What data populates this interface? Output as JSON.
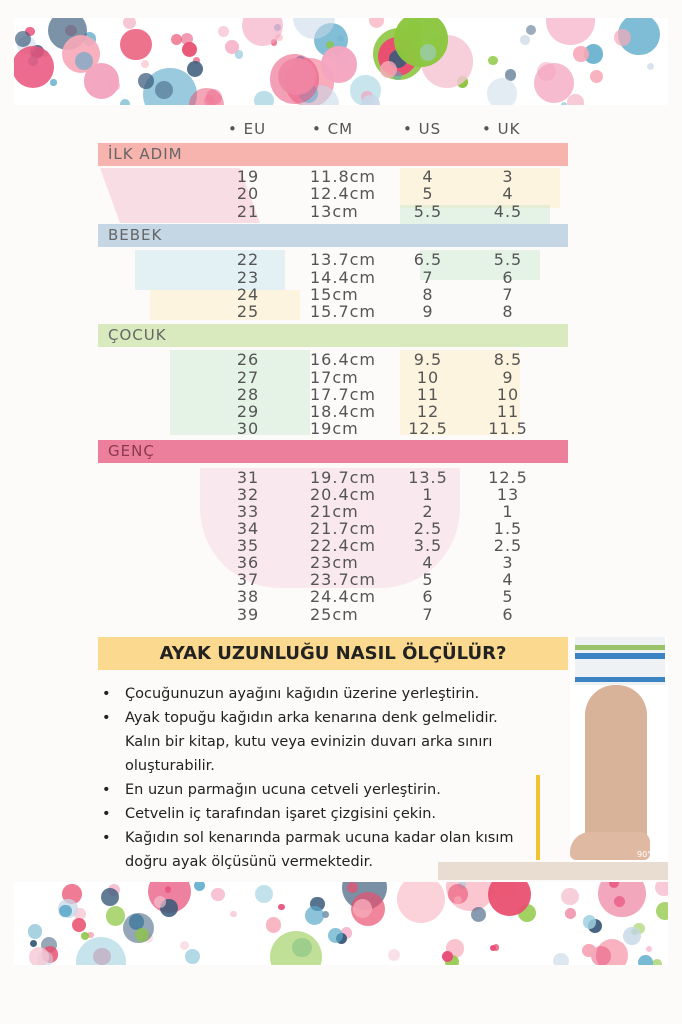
{
  "columns": [
    "• EU",
    "• CM",
    "• US",
    "• UK"
  ],
  "sections": [
    {
      "label": "İLK ADIM",
      "color": "#f7b3ad",
      "rows": [
        [
          "19",
          "11.8cm",
          "4",
          "3"
        ],
        [
          "20",
          "12.4cm",
          "5",
          "4"
        ],
        [
          "21",
          "13cm",
          "5.5",
          "4.5"
        ]
      ]
    },
    {
      "label": "BEBEK",
      "color": "#c5d6e5",
      "rows": [
        [
          "22",
          "13.7cm",
          "6.5",
          "5.5"
        ],
        [
          "23",
          "14.4cm",
          "7",
          "6"
        ],
        [
          "24",
          "15cm",
          "8",
          "7"
        ],
        [
          "25",
          "15.7cm",
          "9",
          "8"
        ]
      ]
    },
    {
      "label": "ÇOCUK",
      "color": "#d9ebbe",
      "rows": [
        [
          "26",
          "16.4cm",
          "9.5",
          "8.5"
        ],
        [
          "27",
          "17cm",
          "10",
          "9"
        ],
        [
          "28",
          "17.7cm",
          "11",
          "10"
        ],
        [
          "29",
          "18.4cm",
          "12",
          "11"
        ],
        [
          "30",
          "19cm",
          "12.5",
          "11.5"
        ]
      ]
    },
    {
      "label": "GENÇ",
      "color": "#ec7f9c",
      "rows": [
        [
          "31",
          "19.7cm",
          "13.5",
          "12.5"
        ],
        [
          "32",
          "20.4cm",
          "1",
          "13"
        ],
        [
          "33",
          "21cm",
          "2",
          "1"
        ],
        [
          "34",
          "21.7cm",
          "2.5",
          "1.5"
        ],
        [
          "35",
          "22.4cm",
          "3.5",
          "2.5"
        ],
        [
          "36",
          "23cm",
          "4",
          "3"
        ],
        [
          "37",
          "23.7cm",
          "5",
          "4"
        ],
        [
          "38",
          "24.4cm",
          "6",
          "5"
        ],
        [
          "39",
          "25cm",
          "7",
          "6"
        ]
      ]
    }
  ],
  "howto": {
    "title": "AYAK UZUNLUĞU NASIL ÖLÇÜLÜR?",
    "steps": [
      "Çocuğunuzun ayağını kağıdın üzerine yerleştirin.",
      "Ayak topuğu kağıdın arka kenarına denk gelmelidir. Kalın bir kitap, kutu veya evinizin duvarı arka sınırı oluşturabilir.",
      "En uzun parmağın ucuna cetveli yerleştirin.",
      "Cetvelin iç tarafından işaret çizgisini çekin.",
      "Kağıdın sol kenarında parmak ucuna kadar olan kısım doğru ayak ölçüsünü vermektedir."
    ],
    "angle_label": "90°"
  },
  "dot_colors": [
    "#e94f6f",
    "#3a5a7a",
    "#8cc63f",
    "#f7a8b8",
    "#5aa9c9",
    "#f4a6c0",
    "#c8d8e8",
    "#e8507a",
    "#9fd0e0",
    "#f6c6d4"
  ]
}
